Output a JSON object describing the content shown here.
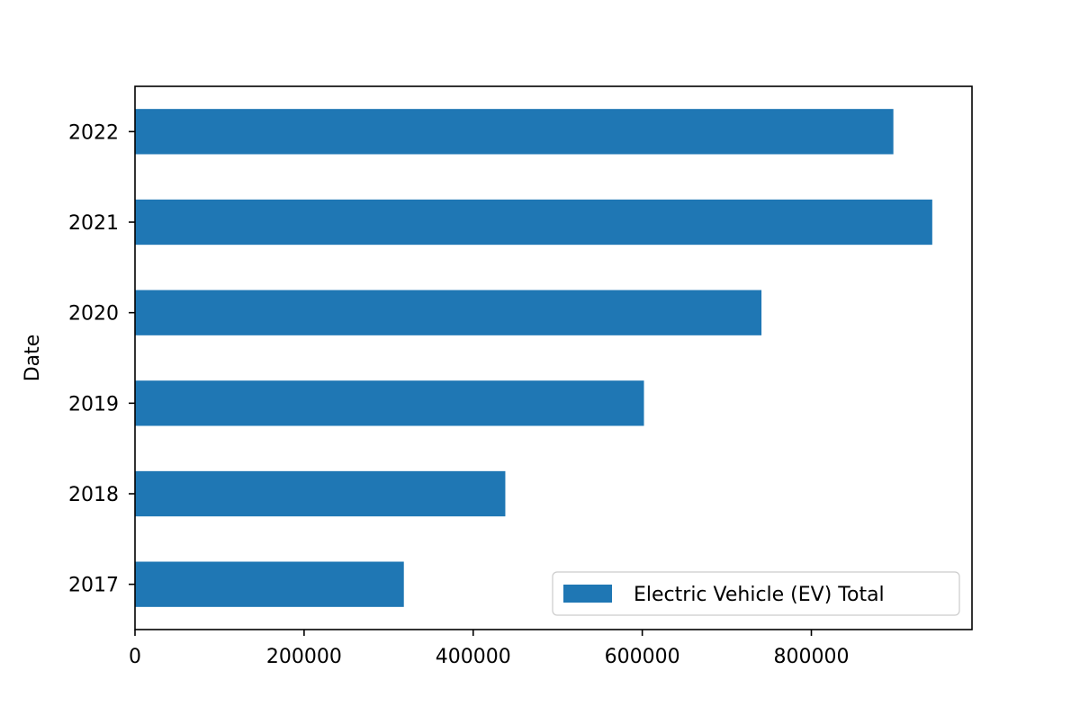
{
  "chart_data": {
    "type": "bar",
    "orientation": "horizontal",
    "categories": [
      "2017",
      "2018",
      "2019",
      "2020",
      "2021",
      "2022"
    ],
    "series": [
      {
        "name": "Electric Vehicle (EV) Total",
        "values": [
          318000,
          438000,
          602000,
          741000,
          943000,
          897000
        ],
        "color": "#1f77b4"
      }
    ],
    "title": "",
    "xlabel": "",
    "ylabel": "Date",
    "xlim": [
      0,
      990000
    ],
    "xticks": [
      0,
      200000,
      400000,
      600000,
      800000
    ],
    "xtick_labels": [
      "0",
      "200000",
      "400000",
      "600000",
      "800000"
    ],
    "grid": false,
    "legend_position": "lower-right"
  }
}
